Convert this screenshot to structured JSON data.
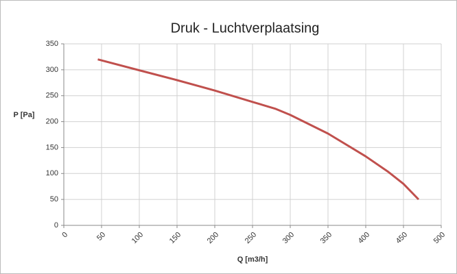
{
  "chart_data": {
    "type": "line",
    "title": "Druk - Luchtverplaatsing",
    "xlabel": "Q [m3/h]",
    "ylabel": "P [Pa]",
    "x": [
      45,
      100,
      150,
      200,
      250,
      280,
      300,
      350,
      400,
      430,
      450,
      470
    ],
    "series": [
      {
        "name": "P",
        "color": "#c0504d",
        "values": [
          320,
          299,
          280,
          260,
          238,
          225,
          213,
          177,
          133,
          103,
          80,
          50
        ]
      }
    ],
    "xlim": [
      0,
      500
    ],
    "xticks": [
      0,
      50,
      100,
      150,
      200,
      250,
      300,
      350,
      400,
      450,
      500
    ],
    "ylim": [
      0,
      350
    ],
    "yticks": [
      0,
      50,
      100,
      150,
      200,
      250,
      300,
      350
    ],
    "grid": true
  }
}
